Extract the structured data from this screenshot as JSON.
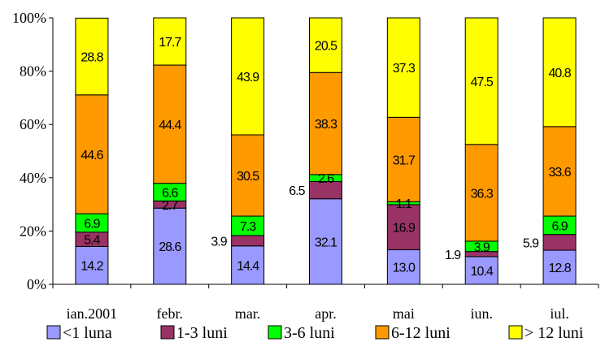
{
  "chart_data": {
    "type": "bar",
    "stacked": true,
    "percent": true,
    "title": "",
    "xlabel": "",
    "ylabel": "",
    "ylim": [
      0,
      100
    ],
    "yticks": [
      "0%",
      "20%",
      "40%",
      "60%",
      "80%",
      "100%"
    ],
    "categories": [
      "ian.2001",
      "febr.",
      "mar.",
      "apr.",
      "mai",
      "iun.",
      "iul."
    ],
    "series": [
      {
        "name": "<1 luna",
        "color": "#9999ff",
        "values": [
          14.2,
          28.6,
          14.4,
          32.1,
          13.0,
          10.4,
          12.8
        ]
      },
      {
        "name": "1-3 luni",
        "color": "#993366",
        "values": [
          5.4,
          2.7,
          3.9,
          6.5,
          16.9,
          1.9,
          5.9
        ]
      },
      {
        "name": "3-6 luni",
        "color": "#00ff00",
        "values": [
          6.9,
          6.6,
          7.3,
          2.6,
          1.1,
          3.9,
          6.9
        ]
      },
      {
        "name": "6-12 luni",
        "color": "#ff9900",
        "values": [
          44.6,
          44.4,
          30.5,
          38.3,
          31.7,
          36.3,
          33.6
        ]
      },
      {
        "name": "> 12 luni",
        "color": "#ffff00",
        "values": [
          28.8,
          17.7,
          43.9,
          20.5,
          37.3,
          47.5,
          40.8
        ]
      }
    ],
    "data_labels": [
      [
        "14.2",
        "28.6",
        "14.4",
        "32.1",
        "13.0",
        "10.4",
        "12.8"
      ],
      [
        "5.4",
        "2.7",
        "3.9",
        "6.5",
        "16.9",
        "1.9",
        "5.9"
      ],
      [
        "6.9",
        "6.6",
        "7.3",
        "2.6",
        "1.1",
        "3.9",
        "6.9"
      ],
      [
        "44.6",
        "44.4",
        "30.5",
        "38.3",
        "31.7",
        "36.3",
        "33.6"
      ],
      [
        "28.8",
        "17.7",
        "43.9",
        "20.5",
        "37.3",
        "47.5",
        "40.8"
      ]
    ],
    "outside_labels": [
      [
        1,
        2
      ],
      [
        1,
        3
      ],
      [
        1,
        5
      ],
      [
        1,
        6
      ]
    ],
    "grid": false,
    "legend": "bottom"
  }
}
